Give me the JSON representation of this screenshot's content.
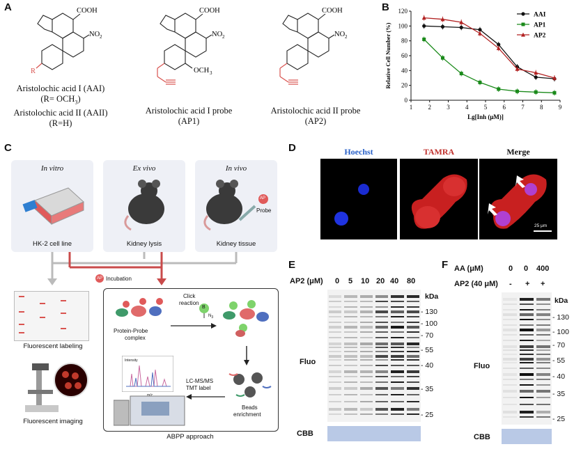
{
  "panels": {
    "A": "A",
    "B": "B",
    "C": "C",
    "D": "D",
    "E": "E",
    "F": "F"
  },
  "structures": {
    "cooh": "COOH",
    "no2": "NO",
    "no2_sub": "2",
    "r_label": "R",
    "och3": "OCH",
    "och3_sub": "3",
    "aai_line1": "Aristolochic acid I (AAI)",
    "aai_line2": "(R= OCH",
    "aai_line2_sub": "3",
    "aai_line2_end": ")",
    "aaii_line1": "Aristolochic acid II (AAII)",
    "aaii_line2": "(R=H)",
    "ap1_line1": "Aristolochic acid I probe",
    "ap1_line2": "(AP1)",
    "ap2_line1": "Aristolochic acid II probe",
    "ap2_line2": "(AP2)"
  },
  "chart_data": {
    "type": "line",
    "ylabel": "Relative Cell Number (%)",
    "xlabel": "Lg[Inh (μM)]",
    "xlim": [
      1,
      9
    ],
    "ylim": [
      0,
      120
    ],
    "xticks": [
      1,
      2,
      3,
      4,
      5,
      6,
      7,
      8,
      9
    ],
    "yticks": [
      0,
      20,
      40,
      60,
      80,
      100,
      120
    ],
    "legend_position": "top-right",
    "series": [
      {
        "name": "AAI",
        "color": "#111111",
        "marker": "circle",
        "x": [
          1.7,
          2.7,
          3.7,
          4.7,
          5.7,
          6.7,
          7.7,
          8.7
        ],
        "y": [
          100,
          99,
          98,
          95,
          75,
          45,
          31,
          29
        ]
      },
      {
        "name": "AP1",
        "color": "#1a8a1a",
        "marker": "square",
        "x": [
          1.7,
          2.7,
          3.7,
          4.7,
          5.7,
          6.7,
          7.7,
          8.7
        ],
        "y": [
          82,
          57,
          36,
          24,
          15,
          12,
          11,
          10
        ]
      },
      {
        "name": "AP2",
        "color": "#b22222",
        "marker": "triangle",
        "x": [
          1.7,
          2.7,
          3.7,
          4.7,
          5.7,
          6.7,
          7.7,
          8.7
        ],
        "y": [
          111,
          109,
          105,
          90,
          70,
          42,
          37,
          30
        ]
      }
    ]
  },
  "workflow": {
    "in_vitro": "In vitro",
    "ex_vivo": "Ex vivo",
    "in_vivo": "In vivo",
    "hk2": "HK-2 cell line",
    "kidney_lysis": "Kidney lysis",
    "kidney_tissue": "Kidney tissue",
    "probe": "Probe",
    "ap": "AP",
    "incubation": "Incubation",
    "fluorescent_labeling": "Fluorescent labeling",
    "fluorescent_imaging": "Fluorescent imaging",
    "protein_probe_complex_1": "Protein-Probe",
    "protein_probe_complex_2": "complex",
    "click_1": "Click",
    "click_2": "reaction",
    "n3": "N",
    "n3_sub": "3",
    "b": "B",
    "beads_1": "Beads",
    "beads_2": "enrichment",
    "lcms_1": "LC-MS/MS",
    "lcms_2": "TMT label",
    "intensity": "Intensity",
    "mz": "m/z",
    "abpp": "ABPP  approach"
  },
  "micro": {
    "hoechst": "Hoechst",
    "tamra": "TAMRA",
    "merge": "Merge",
    "scale": "25 μm"
  },
  "gelE": {
    "header": "AP2 (μM)",
    "concs": [
      "0",
      "5",
      "10",
      "20",
      "40",
      "80"
    ],
    "kda": "kDa",
    "markers": [
      "130",
      "100",
      "70",
      "55",
      "40",
      "35",
      "25"
    ],
    "fluo": "Fluo",
    "cbb": "CBB"
  },
  "gelF": {
    "aa_header": "AA (μM)",
    "aa_vals": [
      "0",
      "0",
      "400"
    ],
    "ap2_header": "AP2 (40 μM)",
    "ap2_vals": [
      "-",
      "+",
      "+"
    ],
    "kda": "kDa",
    "markers": [
      "130",
      "100",
      "70",
      "55",
      "40",
      "35",
      "25"
    ],
    "fluo": "Fluo",
    "cbb": "CBB"
  }
}
